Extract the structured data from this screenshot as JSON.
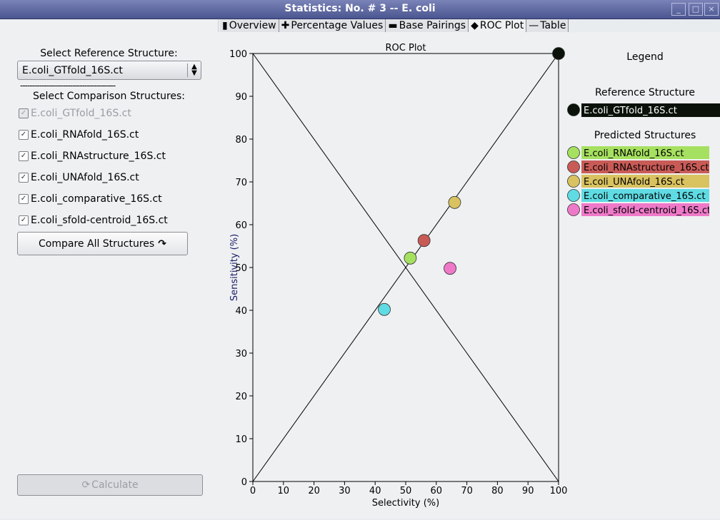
{
  "window": {
    "title": "Statistics: No. # 3 -- E. coli"
  },
  "left": {
    "ref_label": "Select Reference Structure:",
    "ref_value": "E.coli_GTfold_16S.ct",
    "dashes": "----------------------------------------",
    "comp_label": "Select Comparison Structures:",
    "items": [
      {
        "label": "E.coli_GTfold_16S.ct",
        "checked": true,
        "disabled": true
      },
      {
        "label": "E.coli_RNAfold_16S.ct",
        "checked": true,
        "disabled": false
      },
      {
        "label": "E.coli_RNAstructure_16S.ct",
        "checked": true,
        "disabled": false
      },
      {
        "label": "E.coli_UNAfold_16S.ct",
        "checked": true,
        "disabled": false
      },
      {
        "label": "E.coli_comparative_16S.ct",
        "checked": true,
        "disabled": false
      },
      {
        "label": "E.coli_sfold-centroid_16S.ct",
        "checked": true,
        "disabled": false
      }
    ],
    "compare_button": "Compare All Structures",
    "calculate_button": "Calculate"
  },
  "tabs": [
    {
      "label": "Overview",
      "icon": "document-icon"
    },
    {
      "label": "Percentage Values",
      "icon": "plus-icon"
    },
    {
      "label": "Base Pairings",
      "icon": "bar-icon"
    },
    {
      "label": "ROC Plot",
      "icon": "diamond-arrows-icon"
    },
    {
      "label": "Table",
      "icon": "line-icon"
    }
  ],
  "chart_data": {
    "type": "scatter",
    "title": "ROC Plot",
    "xlabel": "Selectivity (%)",
    "ylabel": "Sensitivity (%)",
    "xlim": [
      0,
      100
    ],
    "ylim": [
      0,
      100
    ],
    "xticks": [
      0,
      10,
      20,
      30,
      40,
      50,
      60,
      70,
      80,
      90,
      100
    ],
    "yticks": [
      0,
      10,
      20,
      30,
      40,
      50,
      60,
      70,
      80,
      90,
      100
    ],
    "points": [
      {
        "name": "E.coli_GTfold_16S.ct",
        "x": 100,
        "y": 100,
        "color": "#0a120a"
      },
      {
        "name": "E.coli_RNAfold_16S.ct",
        "x": 51.5,
        "y": 52.2,
        "color": "#a6e060"
      },
      {
        "name": "E.coli_RNAstructure_16S.ct",
        "x": 56,
        "y": 56.3,
        "color": "#c95b57"
      },
      {
        "name": "E.coli_UNAfold_16S.ct",
        "x": 66,
        "y": 65.2,
        "color": "#d9c260"
      },
      {
        "name": "E.coli_comparative_16S.ct",
        "x": 43,
        "y": 40.2,
        "color": "#5fdbe3"
      },
      {
        "name": "E.coli_sfold-centroid_16S.ct",
        "x": 64.5,
        "y": 49.8,
        "color": "#ef79c9"
      }
    ],
    "legend": {
      "title": "Legend",
      "reference_title": "Reference Structure",
      "predicted_title": "Predicted Structures",
      "reference": {
        "label": "E.coli_GTfold_16S.ct",
        "color": "#0a120a"
      },
      "predicted": [
        {
          "label": "E.coli_RNAfold_16S.ct",
          "color": "#a6e060"
        },
        {
          "label": "E.coli_RNAstructure_16S.ct",
          "color": "#c95b57"
        },
        {
          "label": "E.coli_UNAfold_16S.ct",
          "color": "#d9c260"
        },
        {
          "label": "E.coli_comparative_16S.ct",
          "color": "#5fdbe3"
        },
        {
          "label": "E.coli_sfold-centroid_16S.ct",
          "color": "#ef79c9"
        }
      ]
    }
  }
}
